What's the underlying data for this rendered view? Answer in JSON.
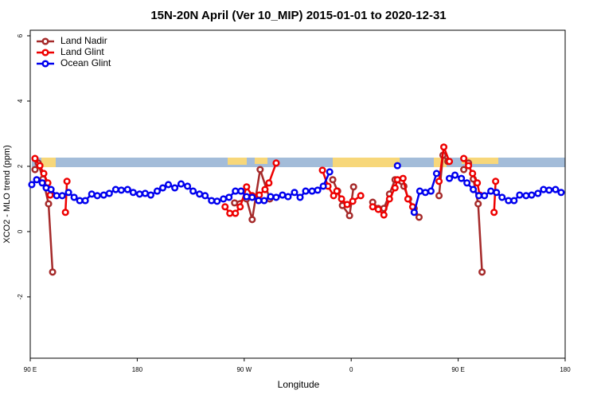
{
  "chart_data": {
    "type": "line",
    "title": "15N-20N April (Ver 10_MIP)   2015-01-01 to 2020-12-31",
    "x_label": "Longitude",
    "y_label": "XCO2 - MLO trend (ppm)",
    "xlim": [
      90,
      540
    ],
    "ylim": [
      -3.88,
      6.17
    ],
    "xticks": [
      {
        "value": 90,
        "label": "90 E"
      },
      {
        "value": 180,
        "label": "180"
      },
      {
        "value": 270,
        "label": "90 W"
      },
      {
        "value": 360,
        "label": "0"
      },
      {
        "value": 450,
        "label": "90 E"
      },
      {
        "value": 540,
        "label": "180"
      }
    ],
    "yticks": [
      -2,
      0,
      2,
      4,
      6
    ],
    "legend": "top-left",
    "series": [
      {
        "name": "Land Nadir",
        "color": "#a52a2a",
        "x": [
          94.0,
          96.7,
          100.7,
          105.4,
          108.8,
          null,
          261.9,
          272.0,
          276.7,
          283.4,
          291.5,
          null,
          344.5,
          348.6,
          352.6,
          358.6,
          362.0,
          null,
          378.1,
          382.8,
          387.5,
          392.2,
          396.9,
          404.3,
          408.3,
          413.0,
          417.1,
          null,
          433.9,
          437.2,
          441.3,
          null,
          454.7,
          458.7,
          462.7,
          466.8,
          470.1
        ],
        "values": [
          1.9,
          2.1,
          1.61,
          0.85,
          -1.24,
          null,
          0.88,
          1.0,
          0.37,
          1.9,
          1.0,
          null,
          1.59,
          1.24,
          0.8,
          0.49,
          1.37,
          null,
          0.9,
          0.71,
          0.71,
          1.15,
          1.59,
          1.39,
          1.0,
          0.71,
          0.44,
          null,
          1.1,
          2.34,
          2.15,
          null,
          1.9,
          2.1,
          1.61,
          0.85,
          -1.24
        ]
      },
      {
        "name": "Land Glint",
        "color": "#ee0000",
        "x": [
          94.0,
          98.1,
          101.4,
          104.8,
          106.8,
          null,
          119.6,
          120.9,
          null,
          253.9,
          257.9,
          262.6,
          266.6,
          272.0,
          276.7,
          282.7,
          287.5,
          290.8,
          296.9,
          null,
          335.8,
          340.5,
          345.2,
          347.9,
          351.9,
          356.6,
          361.3,
          368.0,
          null,
          378.1,
          382.8,
          387.5,
          392.2,
          396.9,
          398.9,
          403.6,
          407.7,
          411.7,
          null,
          433.9,
          437.9,
          442.6,
          null,
          454.7,
          458.7,
          462.1,
          466.1,
          468.1,
          null,
          480.2,
          481.5
        ],
        "values": [
          2.24,
          2.02,
          1.78,
          1.49,
          1.12,
          null,
          0.59,
          1.54,
          null,
          0.76,
          0.56,
          0.56,
          0.76,
          1.37,
          1.1,
          1.12,
          1.29,
          1.49,
          2.1,
          null,
          1.88,
          1.39,
          1.1,
          1.24,
          1.0,
          0.83,
          0.93,
          1.1,
          null,
          0.76,
          0.68,
          0.51,
          1.0,
          1.34,
          1.59,
          1.63,
          1.0,
          0.76,
          null,
          1.54,
          2.59,
          2.15,
          null,
          2.24,
          2.02,
          1.78,
          1.49,
          1.12,
          null,
          0.59,
          1.54
        ]
      },
      {
        "name": "Ocean Glint",
        "color": "#0000ee",
        "x": [
          91.3,
          95.4,
          100.1,
          103.4,
          107.5,
          112.2,
          116.9,
          122.2,
          126.9,
          131.6,
          136.3,
          141.7,
          146.4,
          151.8,
          156.5,
          161.9,
          166.6,
          171.9,
          176.6,
          182.0,
          186.7,
          191.4,
          196.8,
          201.5,
          206.2,
          211.6,
          216.9,
          222.3,
          227.0,
          232.4,
          237.1,
          242.5,
          247.2,
          252.5,
          257.2,
          262.6,
          267.3,
          272.0,
          276.7,
          282.1,
          286.8,
          292.2,
          296.9,
          302.2,
          306.9,
          312.3,
          317.0,
          321.7,
          327.1,
          331.8,
          336.5,
          341.9,
          null,
          398.9,
          null,
          413.0,
          417.7,
          422.4,
          427.1,
          431.8,
          null,
          442.6,
          447.3,
          452.7,
          457.4,
          462.7,
          467.4,
          472.1,
          477.5,
          482.2,
          486.9,
          492.3,
          497.0,
          501.7,
          507.1,
          511.8,
          517.1,
          521.8,
          526.5,
          531.9,
          536.6
        ],
        "values": [
          1.44,
          1.59,
          1.49,
          1.34,
          1.29,
          1.1,
          1.1,
          1.2,
          1.05,
          0.95,
          0.95,
          1.15,
          1.1,
          1.12,
          1.17,
          1.29,
          1.27,
          1.29,
          1.2,
          1.15,
          1.17,
          1.12,
          1.24,
          1.34,
          1.44,
          1.34,
          1.46,
          1.39,
          1.24,
          1.15,
          1.1,
          0.95,
          0.93,
          1.0,
          1.05,
          1.24,
          1.24,
          1.07,
          1.05,
          0.95,
          0.95,
          1.07,
          1.05,
          1.12,
          1.07,
          1.2,
          1.05,
          1.24,
          1.24,
          1.27,
          1.39,
          1.83,
          null,
          2.02,
          null,
          0.59,
          1.24,
          1.2,
          1.24,
          1.78,
          null,
          1.63,
          1.73,
          1.63,
          1.49,
          1.29,
          1.1,
          1.1,
          1.24,
          1.2,
          1.05,
          0.95,
          0.95,
          1.12,
          1.1,
          1.12,
          1.17,
          1.29,
          1.27,
          1.29,
          1.2
        ]
      }
    ]
  }
}
